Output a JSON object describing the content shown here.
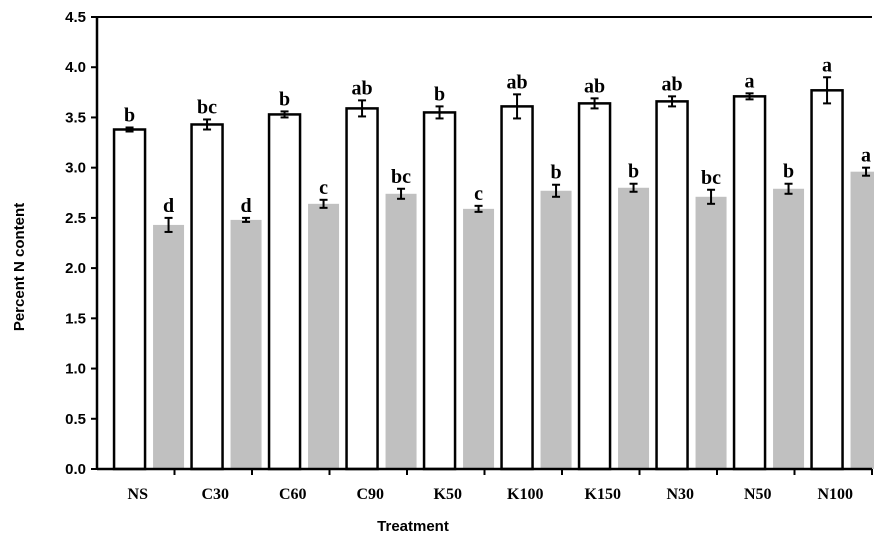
{
  "chart_data": {
    "type": "bar",
    "xlabel": "Treatment",
    "ylabel": "Percent N content",
    "ylim": [
      0,
      4.5
    ],
    "yticks": [
      "0.0",
      "0.5",
      "1.0",
      "1.5",
      "2.0",
      "2.5",
      "3.0",
      "3.5",
      "4.0",
      "4.5"
    ],
    "categories": [
      "NS",
      "C30",
      "C60",
      "C90",
      "K50",
      "K100",
      "K150",
      "N30",
      "N50",
      "N100"
    ],
    "grid": false,
    "legend": "none",
    "series": [
      {
        "color": "#ffffff",
        "stroke": "#000000",
        "values": [
          3.38,
          3.43,
          3.53,
          3.59,
          3.55,
          3.61,
          3.64,
          3.66,
          3.71,
          3.77
        ],
        "errors": [
          0.02,
          0.05,
          0.03,
          0.08,
          0.06,
          0.12,
          0.05,
          0.05,
          0.03,
          0.13
        ],
        "sig": [
          "b",
          "bc",
          "b",
          "ab",
          "b",
          "ab",
          "ab",
          "ab",
          "a",
          "a"
        ]
      },
      {
        "color": "#c0c0c0",
        "stroke": "#c0c0c0",
        "values": [
          2.43,
          2.48,
          2.64,
          2.74,
          2.59,
          2.77,
          2.8,
          2.71,
          2.79,
          2.96
        ],
        "errors": [
          0.07,
          0.02,
          0.04,
          0.05,
          0.03,
          0.06,
          0.04,
          0.07,
          0.05,
          0.04
        ],
        "sig": [
          "d",
          "d",
          "c",
          "bc",
          "c",
          "b",
          "b",
          "bc",
          "b",
          "a"
        ]
      }
    ]
  }
}
